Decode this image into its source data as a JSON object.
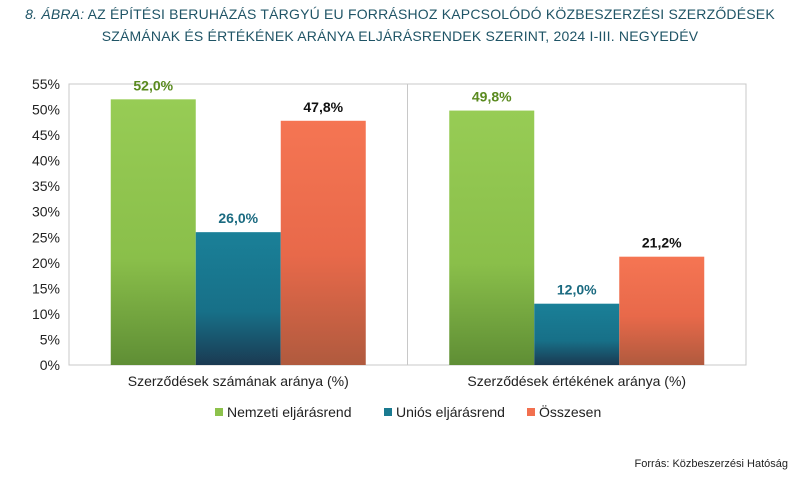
{
  "title": {
    "prefix": "8. ÁBRA:",
    "line1": "AZ ÉPÍTÉSI BERUHÁZÁS TÁRGYÚ EU FORRÁSHOZ KAPCSOLÓDÓ KÖZBESZERZÉSI SZERZŐDÉSEK",
    "line2": "SZÁMÁNAK ÉS ÉRTÉKÉNEK ARÁNYA ELJÁRÁSRENDEK SZERINT, 2024 I-III. NEGYEDÉV"
  },
  "source": "Forrás: Közbeszerzési Hatóság",
  "chart_data": {
    "type": "bar",
    "categories": [
      "Szerződések számának aránya (%)",
      "Szerződések értékének aránya (%)"
    ],
    "series": [
      {
        "name": "Nemzeti eljárásrend",
        "values": [
          52.0,
          49.8
        ],
        "labels": [
          "52,0%",
          "49,8%"
        ],
        "color": "#8dc24c",
        "label_color": "#5a8a1f"
      },
      {
        "name": "Uniós eljárásrend",
        "values": [
          26.0,
          12.0
        ],
        "labels": [
          "26,0%",
          "12,0%"
        ],
        "color": "#1a7a90",
        "label_color": "#1a6a80"
      },
      {
        "name": "Összesen",
        "values": [
          47.8,
          21.2
        ],
        "labels": [
          "47,8%",
          "21,2%"
        ],
        "color": "#f2704f",
        "label_color": "#111111"
      }
    ],
    "ylim": [
      0,
      55
    ],
    "yticks": [
      "0%",
      "5%",
      "10%",
      "15%",
      "20%",
      "25%",
      "30%",
      "35%",
      "40%",
      "45%",
      "50%",
      "55%"
    ],
    "grid": false,
    "legend_position": "bottom"
  }
}
